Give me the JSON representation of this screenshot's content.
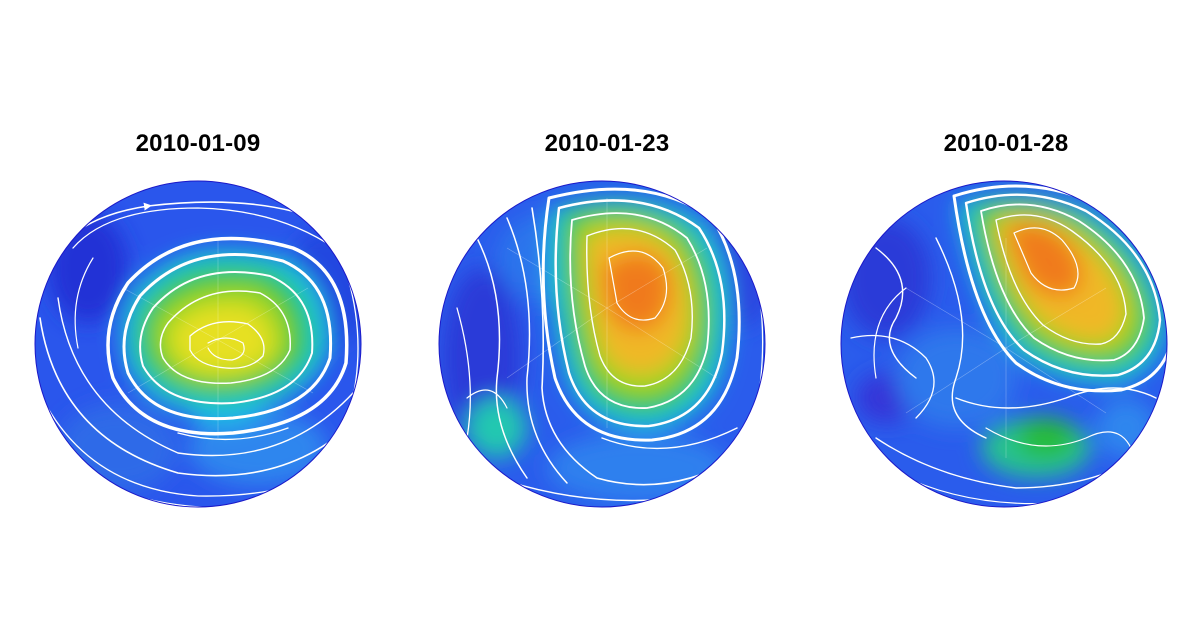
{
  "panels": [
    {
      "title": "2010-01-09"
    },
    {
      "title": "2010-01-23"
    },
    {
      "title": "2010-01-28"
    }
  ],
  "colors": {
    "background": "#ffffff",
    "title": "#000000",
    "streamline": "#ffffff",
    "colormap": [
      "#2a16d8",
      "#1f4cf0",
      "#2c7bf0",
      "#1fc0f0",
      "#18d8a0",
      "#20c030",
      "#8fd020",
      "#e8e020",
      "#f0a020",
      "#f06a18"
    ]
  }
}
